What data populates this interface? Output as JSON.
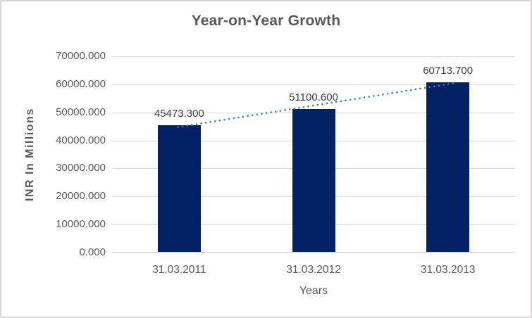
{
  "window": {
    "background_color": "#ffffff",
    "border_color": "#d7d5d5"
  },
  "chart_data": {
    "type": "bar",
    "title": "Year-on-Year Growth",
    "categories": [
      "31.03.2011",
      "31.03.2012",
      "31.03.2013"
    ],
    "values": [
      45473.3,
      51100.6,
      60713.7
    ],
    "data_labels": [
      "45473.300",
      "51100.600",
      "60713.700"
    ],
    "xlabel": "Years",
    "ylabel": "INR In Millions",
    "ylim": [
      0,
      70000
    ],
    "ytick_step": 10000,
    "ytick_labels": [
      "0.000",
      "10000.000",
      "20000.000",
      "30000.000",
      "40000.000",
      "50000.000",
      "60000.000",
      "70000.000"
    ],
    "grid": true,
    "legend_position": "none",
    "colors": {
      "bar_fill": "#032266",
      "trendline": "#4472c4",
      "gridline": "#d9d9d9",
      "axis_line": "#c8c8c8",
      "axis_text": "#595959",
      "title_text": "#595959",
      "data_label_text": "#3d3d3d"
    },
    "trendline": {
      "type": "linear",
      "style": "dotted"
    }
  }
}
